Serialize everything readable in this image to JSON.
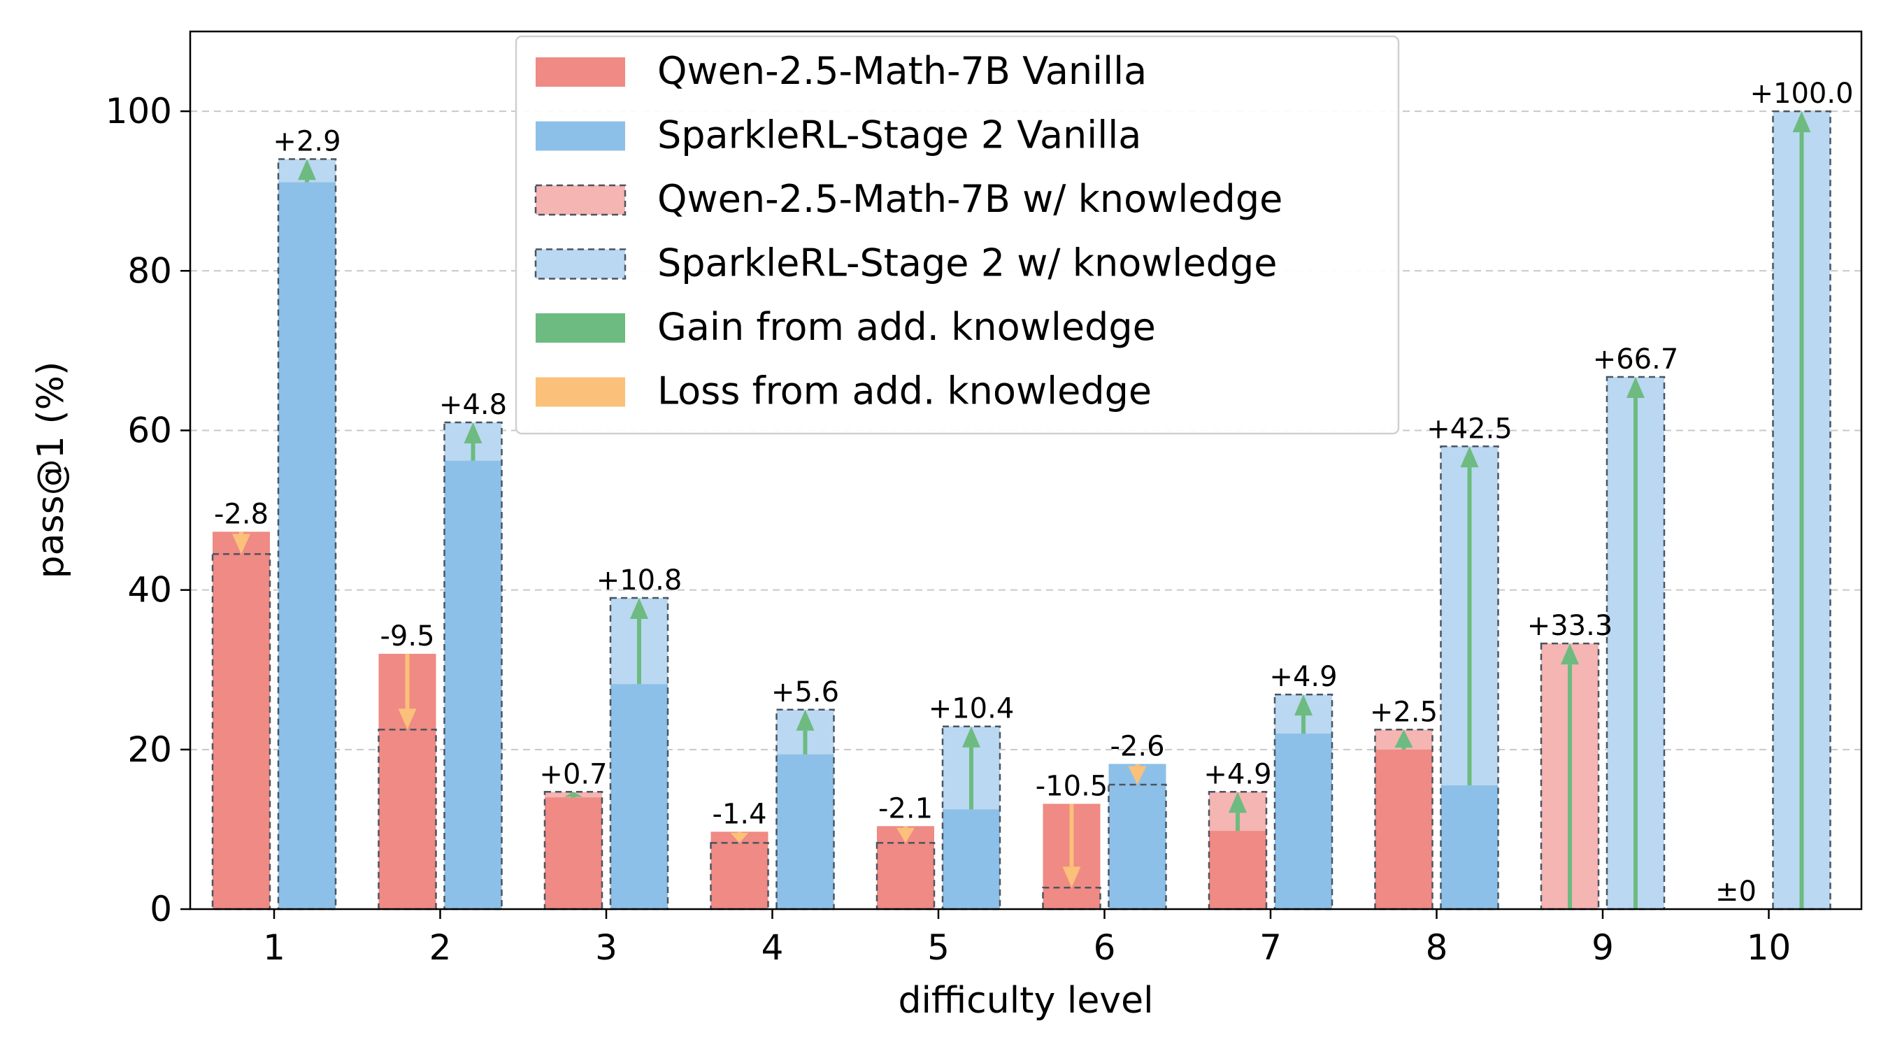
{
  "chart_data": {
    "type": "bar",
    "title": "",
    "xlabel": "difficulty level",
    "ylabel": "pass@1 (%)",
    "ylim": [
      0,
      110
    ],
    "yticks": [
      0,
      20,
      40,
      60,
      80,
      100
    ],
    "grid": true,
    "legend_position": "top-center",
    "categories": [
      "1",
      "2",
      "3",
      "4",
      "5",
      "6",
      "7",
      "8",
      "9",
      "10"
    ],
    "series": [
      {
        "name": "Qwen-2.5-Math-7B Vanilla",
        "role": "vanilla",
        "model": "qwen",
        "color": "#ef8a84",
        "values": [
          47.3,
          32.0,
          14.0,
          9.7,
          10.4,
          13.2,
          9.8,
          20.0,
          0,
          0
        ]
      },
      {
        "name": "SparkleRL-Stage 2 Vanilla",
        "role": "vanilla",
        "model": "sparkle",
        "color": "#8dc0e8",
        "values": [
          91.1,
          56.2,
          28.2,
          19.4,
          12.5,
          18.2,
          22.0,
          15.5,
          0,
          0
        ]
      },
      {
        "name": "Qwen-2.5-Math-7B w/ knowledge",
        "role": "knowledge",
        "model": "qwen",
        "color": "#f4b5b3",
        "values": [
          44.5,
          22.5,
          14.7,
          8.3,
          8.3,
          2.7,
          14.7,
          22.5,
          33.3,
          0
        ]
      },
      {
        "name": "SparkleRL-Stage 2 w/ knowledge",
        "role": "knowledge",
        "model": "sparkle",
        "color": "#bad8f1",
        "values": [
          94.0,
          61.0,
          39.0,
          25.0,
          22.9,
          15.6,
          26.9,
          58.0,
          66.7,
          100.0
        ]
      }
    ],
    "arrow_legend": [
      {
        "name": "Gain from add. knowledge",
        "color": "#6dbb80"
      },
      {
        "name": "Loss from add. knowledge",
        "color": "#fbc07a"
      }
    ],
    "delta_labels": {
      "qwen": [
        "-2.8",
        "-9.5",
        "+0.7",
        "-1.4",
        "-2.1",
        "-10.5",
        "+4.9",
        "+2.5",
        "+33.3",
        "±0"
      ],
      "sparkle": [
        "+2.9",
        "+4.8",
        "+10.8",
        "+5.6",
        "+10.4",
        "-2.6",
        "+4.9",
        "+42.5",
        "+66.7",
        "+100.0"
      ]
    }
  }
}
